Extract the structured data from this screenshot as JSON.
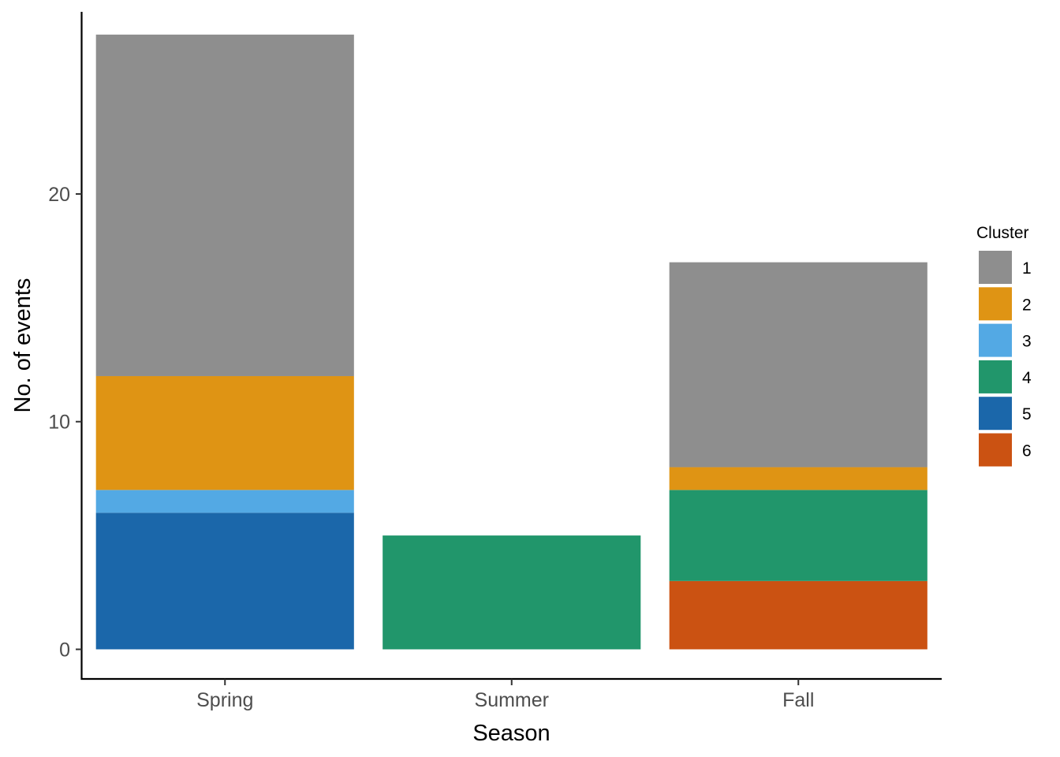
{
  "chart_data": {
    "type": "bar",
    "stacked": true,
    "title": "",
    "xlabel": "Season",
    "ylabel": "No. of events",
    "categories": [
      "Spring",
      "Summer",
      "Fall"
    ],
    "ylim": [
      -1.3,
      28
    ],
    "yticks": [
      0,
      10,
      20
    ],
    "grid": false,
    "legend": {
      "title": "Cluster",
      "position": "right"
    },
    "series": [
      {
        "name": "1",
        "color": "#8e8e8e",
        "values": [
          15,
          0,
          9
        ]
      },
      {
        "name": "2",
        "color": "#df9414",
        "values": [
          5,
          0,
          1
        ]
      },
      {
        "name": "3",
        "color": "#53a9e4",
        "values": [
          1,
          0,
          0
        ]
      },
      {
        "name": "4",
        "color": "#21966b",
        "values": [
          0,
          5,
          4
        ]
      },
      {
        "name": "5",
        "color": "#1b67aa",
        "values": [
          6,
          0,
          0
        ]
      },
      {
        "name": "6",
        "color": "#cb5212",
        "values": [
          0,
          0,
          3
        ]
      }
    ]
  }
}
